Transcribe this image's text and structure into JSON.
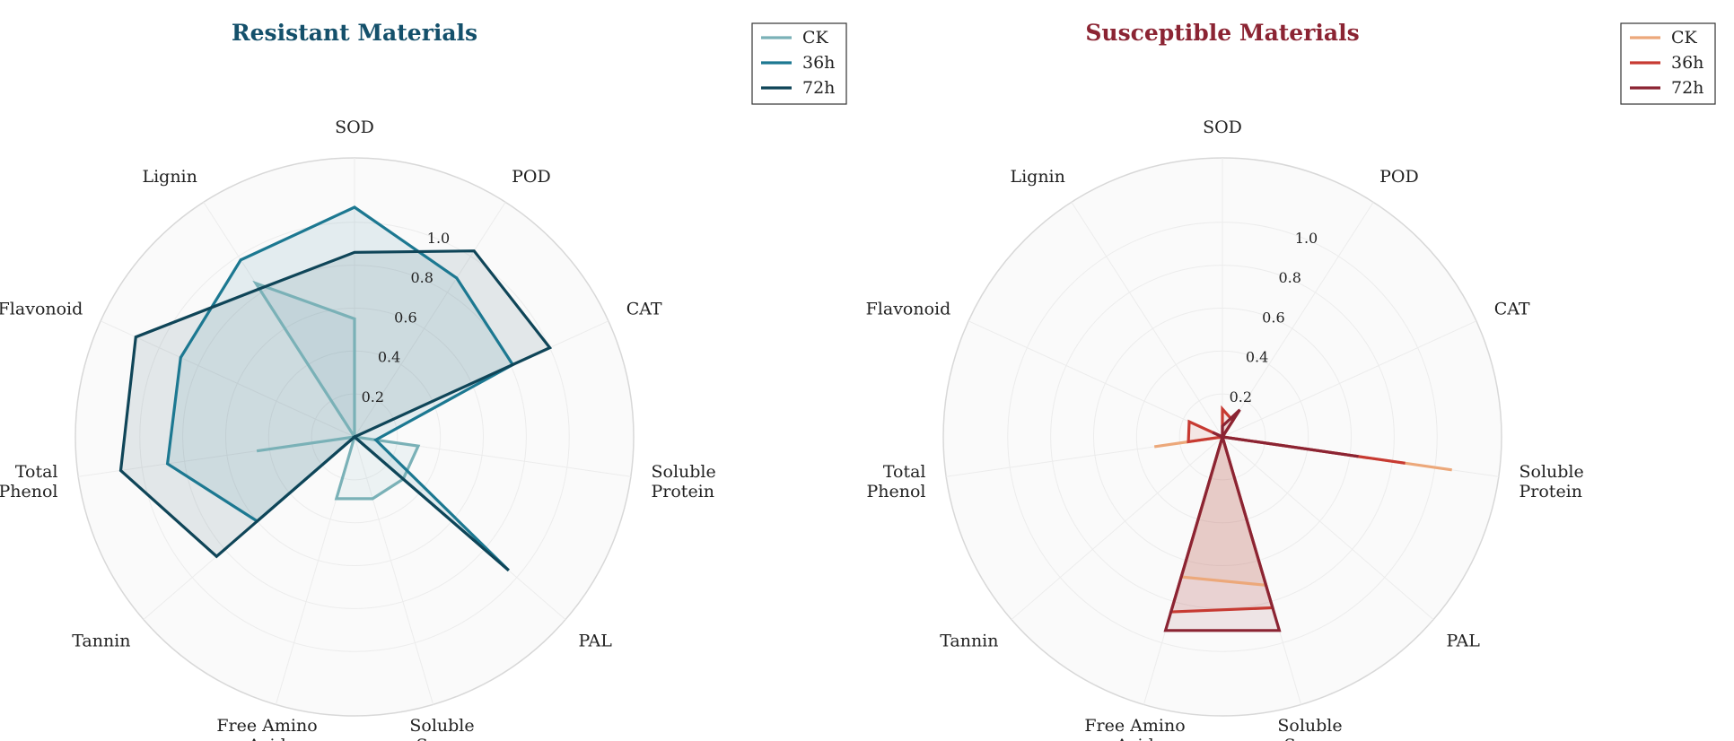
{
  "chart_data": [
    {
      "type": "radar",
      "title": "Resistant Materials",
      "title_color": "#14506b",
      "axes": [
        [
          "SOD"
        ],
        [
          "POD"
        ],
        [
          "CAT"
        ],
        [
          "Soluble",
          "Protein"
        ],
        [
          "PAL"
        ],
        [
          "Soluble",
          "Sugar"
        ],
        [
          "Free Amino",
          "Acid"
        ],
        [
          "Tannin"
        ],
        [
          "Total",
          "Phenol"
        ],
        [
          "Flavonoid"
        ],
        [
          "Lignin"
        ]
      ],
      "r_ticks": [
        "0.2",
        "0.4",
        "0.6",
        "0.8",
        "1.0"
      ],
      "r_tick_values": [
        0.2,
        0.4,
        0.6,
        0.8,
        1.0
      ],
      "ylim": [
        0,
        1.3
      ],
      "grid": true,
      "legend_position": "top-right",
      "series": [
        {
          "name": "CK",
          "color": "#7ab1b7",
          "values": [
            0.55,
            0.0,
            0.0,
            0.3,
            0.3,
            0.3,
            0.3,
            0.0,
            0.46,
            0.0,
            0.85
          ]
        },
        {
          "name": "36h",
          "color": "#1c7891",
          "values": [
            1.07,
            0.88,
            0.81,
            0.1,
            0.95,
            0.0,
            0.0,
            0.6,
            0.88,
            0.89,
            0.98
          ]
        },
        {
          "name": "72h",
          "color": "#0f4558",
          "values": [
            0.86,
            1.03,
            1.0,
            0.0,
            0.95,
            0.0,
            0.0,
            0.85,
            1.1,
            1.12,
            0.82
          ]
        }
      ]
    },
    {
      "type": "radar",
      "title": "Susceptible Materials",
      "title_color": "#8b2433",
      "axes": [
        [
          "SOD"
        ],
        [
          "POD"
        ],
        [
          "CAT"
        ],
        [
          "Soluble",
          "Protein"
        ],
        [
          "PAL"
        ],
        [
          "Soluble",
          "Sugar"
        ],
        [
          "Free Amino",
          "Acid"
        ],
        [
          "Tannin"
        ],
        [
          "Total",
          "Phenol"
        ],
        [
          "Flavonoid"
        ],
        [
          "Lignin"
        ]
      ],
      "r_ticks": [
        "0.2",
        "0.4",
        "0.6",
        "0.8",
        "1.0"
      ],
      "r_tick_values": [
        0.2,
        0.4,
        0.6,
        0.8,
        1.0
      ],
      "ylim": [
        0,
        1.3
      ],
      "grid": true,
      "legend_position": "top-right",
      "series": [
        {
          "name": "CK",
          "color": "#eca87a",
          "values": [
            0.0,
            0.1,
            0.0,
            1.08,
            0.0,
            0.72,
            0.68,
            0.0,
            0.32,
            0.0,
            0.0
          ]
        },
        {
          "name": "36h",
          "color": "#c73a32",
          "values": [
            0.13,
            0.09,
            0.0,
            0.86,
            0.0,
            0.83,
            0.85,
            0.0,
            0.16,
            0.17,
            0.0
          ]
        },
        {
          "name": "72h",
          "color": "#8b2433",
          "values": [
            0.05,
            0.15,
            0.0,
            0.64,
            0.0,
            0.94,
            0.94,
            0.0,
            0.0,
            0.05,
            0.0
          ]
        }
      ]
    }
  ]
}
